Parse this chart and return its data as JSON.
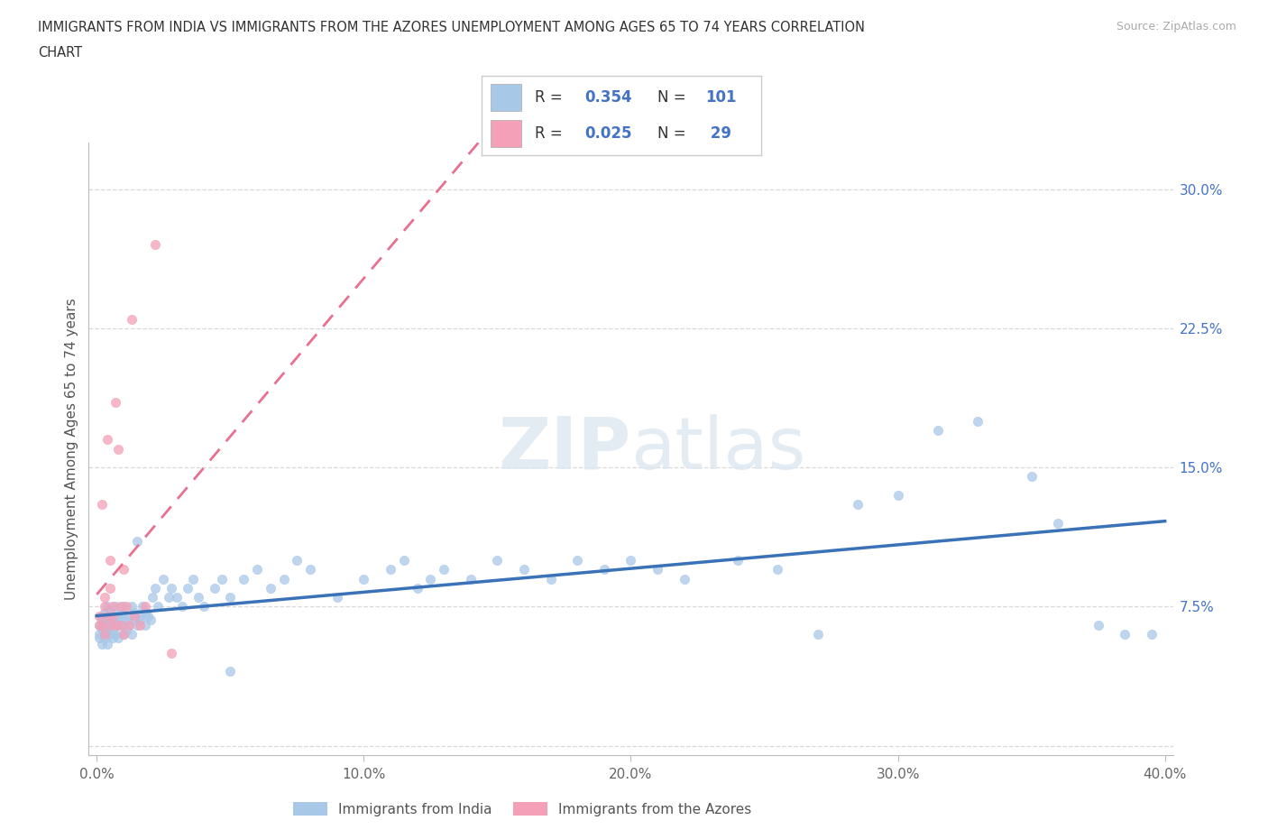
{
  "title_line1": "IMMIGRANTS FROM INDIA VS IMMIGRANTS FROM THE AZORES UNEMPLOYMENT AMONG AGES 65 TO 74 YEARS CORRELATION",
  "title_line2": "CHART",
  "source": "Source: ZipAtlas.com",
  "ylabel": "Unemployment Among Ages 65 to 74 years",
  "xlim": [
    -0.003,
    0.403
  ],
  "ylim": [
    -0.005,
    0.325
  ],
  "xticks": [
    0.0,
    0.1,
    0.2,
    0.3,
    0.4
  ],
  "xticklabels": [
    "0.0%",
    "10.0%",
    "20.0%",
    "30.0%",
    "40.0%"
  ],
  "yticks_right": [
    0.0,
    0.075,
    0.15,
    0.225,
    0.3
  ],
  "yticklabels_right": [
    "",
    "7.5%",
    "15.0%",
    "22.5%",
    "30.0%"
  ],
  "grid_color": "#d0d0d0",
  "background_color": "#ffffff",
  "india_color": "#a8c8e8",
  "azores_color": "#f4a0b8",
  "india_line_color": "#3a72b8",
  "azores_line_color": "#e87090",
  "india_R": 0.354,
  "india_N": 101,
  "azores_R": 0.025,
  "azores_N": 29,
  "legend_label_india": "Immigrants from India",
  "legend_label_azores": "Immigrants from the Azores",
  "india_x": [
    0.001,
    0.001,
    0.001,
    0.002,
    0.002,
    0.002,
    0.002,
    0.003,
    0.003,
    0.003,
    0.003,
    0.004,
    0.004,
    0.004,
    0.004,
    0.005,
    0.005,
    0.005,
    0.005,
    0.006,
    0.006,
    0.006,
    0.007,
    0.007,
    0.007,
    0.007,
    0.008,
    0.008,
    0.008,
    0.009,
    0.009,
    0.01,
    0.01,
    0.01,
    0.011,
    0.011,
    0.012,
    0.012,
    0.013,
    0.013,
    0.014,
    0.014,
    0.015,
    0.015,
    0.016,
    0.016,
    0.017,
    0.018,
    0.018,
    0.019,
    0.02,
    0.021,
    0.022,
    0.023,
    0.025,
    0.027,
    0.028,
    0.03,
    0.032,
    0.034,
    0.036,
    0.038,
    0.04,
    0.044,
    0.047,
    0.05,
    0.055,
    0.06,
    0.065,
    0.07,
    0.075,
    0.08,
    0.09,
    0.1,
    0.11,
    0.115,
    0.12,
    0.125,
    0.13,
    0.14,
    0.15,
    0.16,
    0.17,
    0.18,
    0.19,
    0.2,
    0.21,
    0.22,
    0.24,
    0.255,
    0.27,
    0.285,
    0.3,
    0.315,
    0.33,
    0.35,
    0.36,
    0.375,
    0.385,
    0.395,
    0.05
  ],
  "india_y": [
    0.06,
    0.065,
    0.058,
    0.07,
    0.063,
    0.055,
    0.068,
    0.06,
    0.072,
    0.065,
    0.058,
    0.062,
    0.075,
    0.068,
    0.055,
    0.07,
    0.065,
    0.06,
    0.073,
    0.068,
    0.058,
    0.062,
    0.075,
    0.07,
    0.06,
    0.065,
    0.07,
    0.065,
    0.058,
    0.068,
    0.072,
    0.065,
    0.06,
    0.075,
    0.068,
    0.062,
    0.07,
    0.065,
    0.075,
    0.06,
    0.068,
    0.072,
    0.065,
    0.11,
    0.07,
    0.068,
    0.075,
    0.072,
    0.065,
    0.07,
    0.068,
    0.08,
    0.085,
    0.075,
    0.09,
    0.08,
    0.085,
    0.08,
    0.075,
    0.085,
    0.09,
    0.08,
    0.075,
    0.085,
    0.09,
    0.08,
    0.09,
    0.095,
    0.085,
    0.09,
    0.1,
    0.095,
    0.08,
    0.09,
    0.095,
    0.1,
    0.085,
    0.09,
    0.095,
    0.09,
    0.1,
    0.095,
    0.09,
    0.1,
    0.095,
    0.1,
    0.095,
    0.09,
    0.1,
    0.095,
    0.06,
    0.13,
    0.135,
    0.17,
    0.175,
    0.145,
    0.12,
    0.065,
    0.06,
    0.06,
    0.04
  ],
  "azores_x": [
    0.001,
    0.001,
    0.002,
    0.002,
    0.003,
    0.003,
    0.003,
    0.004,
    0.004,
    0.005,
    0.005,
    0.005,
    0.006,
    0.006,
    0.007,
    0.007,
    0.008,
    0.009,
    0.009,
    0.01,
    0.01,
    0.011,
    0.012,
    0.013,
    0.014,
    0.016,
    0.018,
    0.022,
    0.028
  ],
  "azores_y": [
    0.065,
    0.07,
    0.065,
    0.13,
    0.06,
    0.075,
    0.08,
    0.07,
    0.165,
    0.085,
    0.065,
    0.1,
    0.075,
    0.07,
    0.185,
    0.065,
    0.16,
    0.065,
    0.075,
    0.095,
    0.06,
    0.075,
    0.065,
    0.23,
    0.07,
    0.065,
    0.075,
    0.27,
    0.05
  ]
}
